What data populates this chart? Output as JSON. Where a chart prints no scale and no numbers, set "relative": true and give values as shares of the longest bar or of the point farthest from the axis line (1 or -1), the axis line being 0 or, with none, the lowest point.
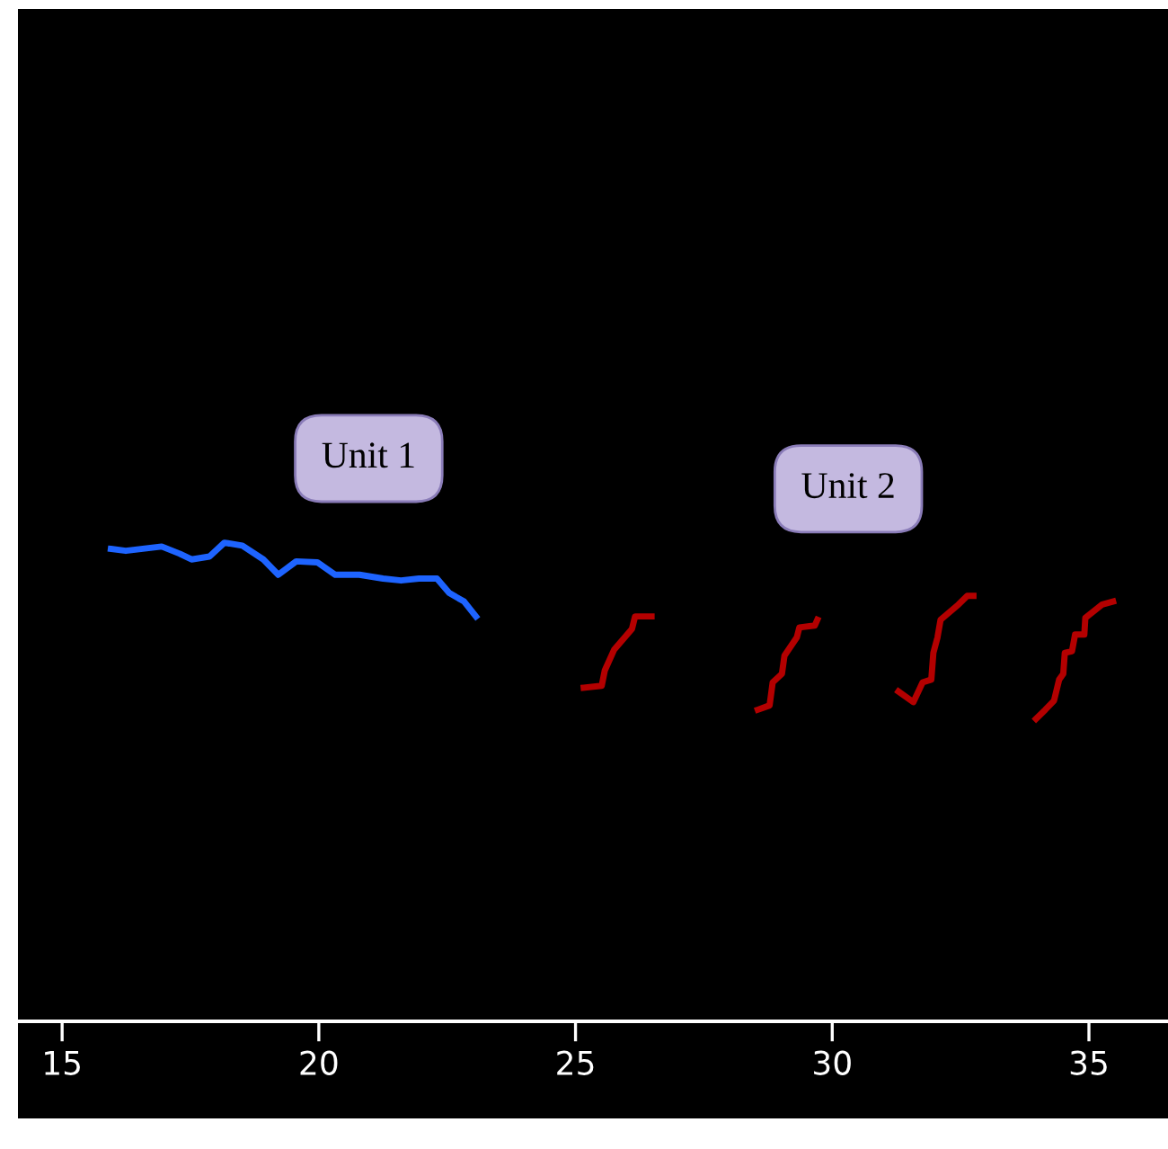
{
  "chart_data": {
    "type": "line",
    "relative": true,
    "tick_labels": "x",
    "grid": false,
    "xlim": [
      14.14,
      36.54
    ],
    "xticks": [
      15,
      20,
      25,
      30,
      35
    ],
    "annotations": [
      "Unit 1",
      "Unit 2"
    ],
    "series": [
      {
        "color": "#1e64ff",
        "x": [
          15.95,
          16.24,
          16.94,
          17.29,
          17.52,
          17.87,
          18.16,
          18.51,
          18.92,
          19.21,
          19.56,
          19.97,
          20.32,
          20.79,
          21.25,
          21.6,
          21.95,
          22.3,
          22.54,
          22.83,
          23.06
        ],
        "values": [
          0.987,
          0.983,
          0.992,
          0.977,
          0.965,
          0.971,
          1.0,
          0.994,
          0.965,
          0.933,
          0.961,
          0.959,
          0.933,
          0.933,
          0.925,
          0.921,
          0.925,
          0.925,
          0.895,
          0.877,
          0.846
        ]
      },
      {
        "color": "#b40000",
        "x": [
          25.16,
          25.51,
          25.57,
          25.75,
          26.1,
          26.16,
          26.48
        ],
        "values": [
          0.697,
          0.701,
          0.733,
          0.776,
          0.82,
          0.846,
          0.846
        ]
      },
      {
        "color": "#b40000",
        "x": [
          28.55,
          28.78,
          28.84,
          29.02,
          29.07,
          29.31,
          29.36,
          29.66,
          29.71
        ],
        "values": [
          0.651,
          0.66,
          0.708,
          0.726,
          0.764,
          0.802,
          0.823,
          0.827,
          0.839
        ]
      },
      {
        "color": "#b40000",
        "x": [
          31.29,
          31.58,
          31.76,
          31.93,
          31.97,
          32.05,
          32.11,
          32.46,
          32.63,
          32.75
        ],
        "values": [
          0.689,
          0.667,
          0.708,
          0.714,
          0.77,
          0.802,
          0.839,
          0.871,
          0.889,
          0.889
        ]
      },
      {
        "color": "#b40000",
        "x": [
          33.97,
          34.15,
          34.32,
          34.42,
          34.5,
          34.53,
          34.67,
          34.73,
          34.91,
          34.93,
          35.26,
          35.47
        ],
        "values": [
          0.632,
          0.651,
          0.67,
          0.714,
          0.726,
          0.77,
          0.773,
          0.808,
          0.808,
          0.843,
          0.871,
          0.877
        ]
      }
    ]
  }
}
